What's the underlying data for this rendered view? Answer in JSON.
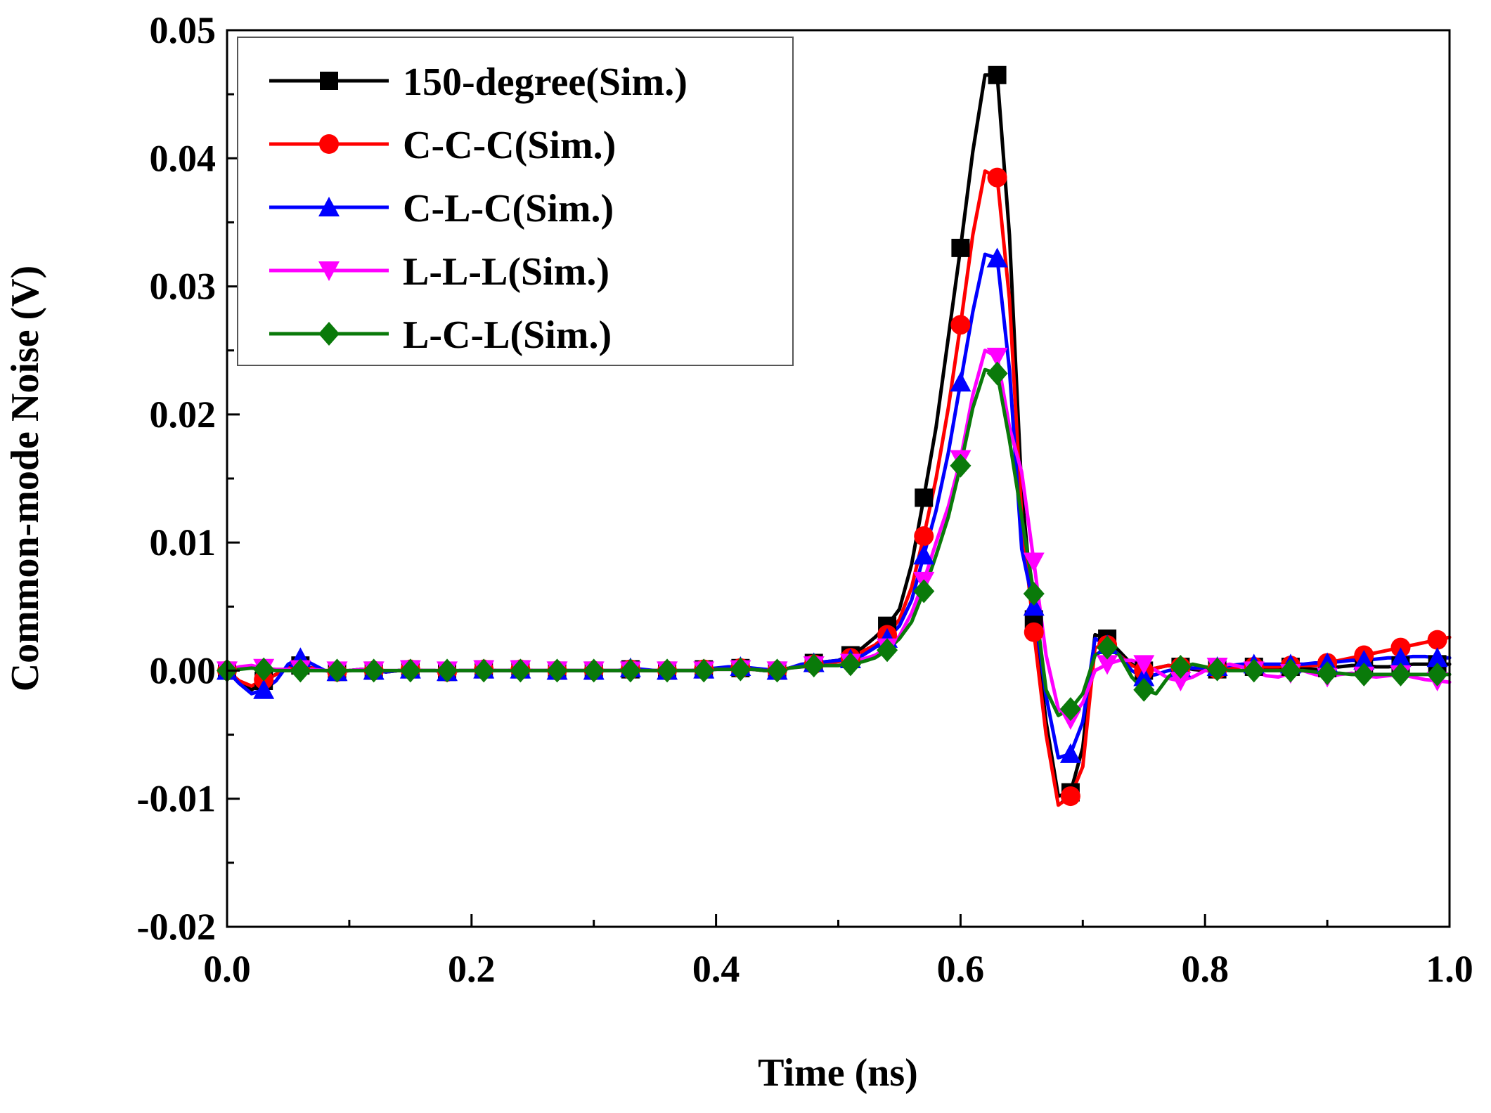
{
  "chart_data": {
    "type": "line",
    "title": "",
    "xlabel": "Time (ns)",
    "ylabel": "Common-mode Noise (V)",
    "xlim": [
      0.0,
      1.0
    ],
    "ylim": [
      -0.02,
      0.05
    ],
    "xticks": [
      0.0,
      0.2,
      0.4,
      0.6,
      0.8,
      1.0
    ],
    "xtick_labels": [
      "0.0",
      "0.2",
      "0.4",
      "0.6",
      "0.8",
      "1.0"
    ],
    "yticks": [
      -0.02,
      -0.01,
      0.0,
      0.01,
      0.02,
      0.03,
      0.04,
      0.05
    ],
    "ytick_labels": [
      "-0.02",
      "-0.01",
      "0.00",
      "0.01",
      "0.02",
      "0.03",
      "0.04",
      "0.05"
    ],
    "grid": false,
    "legend_position": "top-left",
    "x": [
      0.0,
      0.01,
      0.02,
      0.03,
      0.04,
      0.05,
      0.06,
      0.07,
      0.08,
      0.09,
      0.1,
      0.11,
      0.12,
      0.13,
      0.14,
      0.15,
      0.16,
      0.17,
      0.18,
      0.19,
      0.2,
      0.21,
      0.22,
      0.23,
      0.24,
      0.25,
      0.26,
      0.27,
      0.28,
      0.29,
      0.3,
      0.31,
      0.32,
      0.33,
      0.34,
      0.35,
      0.36,
      0.37,
      0.38,
      0.39,
      0.4,
      0.41,
      0.42,
      0.43,
      0.44,
      0.45,
      0.46,
      0.47,
      0.48,
      0.49,
      0.5,
      0.51,
      0.52,
      0.53,
      0.54,
      0.55,
      0.56,
      0.57,
      0.58,
      0.59,
      0.6,
      0.61,
      0.62,
      0.63,
      0.64,
      0.65,
      0.66,
      0.67,
      0.68,
      0.69,
      0.7,
      0.71,
      0.72,
      0.73,
      0.74,
      0.75,
      0.76,
      0.77,
      0.78,
      0.79,
      0.8,
      0.81,
      0.82,
      0.83,
      0.84,
      0.85,
      0.86,
      0.87,
      0.88,
      0.89,
      0.9,
      0.91,
      0.92,
      0.93,
      0.94,
      0.95,
      0.96,
      0.97,
      0.98,
      0.99,
      1.0
    ],
    "series": [
      {
        "name": "150-degree(Sim.)",
        "color": "#000000",
        "marker": "square",
        "marker_every": 3,
        "values": [
          0.0,
          -0.001,
          -0.0015,
          -0.0008,
          -0.0003,
          0.0003,
          0.0004,
          0.0002,
          0.0,
          -0.0001,
          0.0,
          0.0001,
          0.0,
          -0.0001,
          0.0,
          0.0001,
          0.0,
          0.0,
          -0.0001,
          0.0,
          0.0,
          0.0001,
          0.0,
          0.0,
          0.0001,
          0.0,
          0.0,
          0.0,
          0.0,
          0.0,
          0.0,
          0.0,
          0.0,
          0.0001,
          0.0,
          0.0,
          0.0,
          0.0,
          0.0,
          0.0001,
          0.0001,
          0.0002,
          0.0002,
          0.0001,
          0.0,
          0.0,
          0.0002,
          0.0004,
          0.0006,
          0.0007,
          0.0008,
          0.0012,
          0.0018,
          0.0026,
          0.0035,
          0.0048,
          0.0083,
          0.0135,
          0.019,
          0.026,
          0.033,
          0.0405,
          0.0465,
          0.0465,
          0.034,
          0.014,
          0.004,
          -0.004,
          -0.0098,
          -0.0095,
          -0.006,
          0.0028,
          0.0025,
          0.0015,
          0.0005,
          0.0,
          0.0002,
          0.0004,
          0.0003,
          0.0001,
          0.0,
          0.0001,
          0.0002,
          0.0004,
          0.0003,
          0.0002,
          0.0002,
          0.0003,
          0.0002,
          0.0001,
          0.0002,
          0.0003,
          0.0004,
          0.0004,
          0.0003,
          0.0003,
          0.0004,
          0.0005,
          0.0005,
          0.0005,
          0.0005
        ]
      },
      {
        "name": "C-C-C(Sim.)",
        "color": "#ff0000",
        "marker": "circle",
        "marker_every": 3,
        "values": [
          0.0,
          -0.0008,
          -0.0012,
          -0.0007,
          -0.0003,
          0.0002,
          0.0003,
          0.0002,
          0.0,
          -0.0001,
          0.0,
          0.0001,
          0.0,
          -0.0001,
          0.0,
          0.0001,
          0.0,
          0.0,
          -0.0001,
          0.0,
          0.0,
          0.0001,
          0.0,
          0.0,
          0.0001,
          0.0,
          0.0,
          0.0,
          0.0,
          0.0,
          0.0,
          0.0,
          0.0,
          0.0001,
          0.0,
          0.0,
          0.0,
          0.0,
          0.0,
          0.0001,
          0.0001,
          0.0002,
          0.0002,
          0.0001,
          0.0,
          0.0,
          0.0002,
          0.0004,
          0.0005,
          0.0006,
          0.0007,
          0.001,
          0.0015,
          0.002,
          0.0028,
          0.004,
          0.0065,
          0.0105,
          0.015,
          0.0205,
          0.027,
          0.034,
          0.039,
          0.0385,
          0.029,
          0.012,
          0.003,
          -0.005,
          -0.0105,
          -0.0098,
          -0.0075,
          0.0018,
          0.002,
          0.0012,
          0.0004,
          0.0,
          0.0002,
          0.0004,
          0.0003,
          0.0002,
          0.0001,
          0.0001,
          0.0002,
          0.0003,
          0.0003,
          0.0003,
          0.0003,
          0.0004,
          0.0004,
          0.0004,
          0.0006,
          0.0008,
          0.001,
          0.0012,
          0.0014,
          0.0016,
          0.0018,
          0.002,
          0.0022,
          0.0024,
          0.0026
        ]
      },
      {
        "name": "C-L-C(Sim.)",
        "color": "#0000ff",
        "marker": "triangle-up",
        "marker_every": 3,
        "values": [
          0.0,
          -0.001,
          -0.0018,
          -0.0015,
          -0.0008,
          0.0005,
          0.001,
          0.0005,
          0.0,
          -0.0001,
          0.0,
          0.0001,
          0.0,
          -0.0001,
          0.0,
          0.0001,
          0.0,
          0.0,
          -0.0001,
          0.0,
          0.0,
          0.0001,
          0.0,
          0.0,
          0.0001,
          0.0,
          0.0,
          0.0,
          0.0,
          0.0,
          0.0,
          0.0,
          0.0,
          0.0002,
          0.0001,
          0.0,
          0.0,
          0.0,
          0.0,
          0.0001,
          0.0002,
          0.0003,
          0.0003,
          0.0002,
          0.0001,
          0.0,
          0.0002,
          0.0005,
          0.0006,
          0.0007,
          0.0008,
          0.0009,
          0.0012,
          0.0018,
          0.0025,
          0.0035,
          0.0055,
          0.009,
          0.0125,
          0.017,
          0.0225,
          0.028,
          0.0325,
          0.0322,
          0.0235,
          0.0095,
          0.005,
          -0.002,
          -0.0068,
          -0.0065,
          -0.004,
          0.0025,
          0.002,
          0.0012,
          0.0,
          -0.0005,
          -0.0003,
          0.0,
          0.0002,
          0.0002,
          0.0002,
          0.0003,
          0.0004,
          0.0005,
          0.0005,
          0.0005,
          0.0005,
          0.0005,
          0.0005,
          0.0006,
          0.0006,
          0.0007,
          0.0008,
          0.0008,
          0.0009,
          0.001,
          0.001,
          0.0011,
          0.0011,
          0.001,
          0.001
        ]
      },
      {
        "name": "L-L-L(Sim.)",
        "color": "#ff00ff",
        "marker": "triangle-down",
        "marker_every": 3,
        "values": [
          0.0,
          0.0003,
          0.0004,
          0.0002,
          0.0001,
          0.0001,
          0.0001,
          0.0001,
          0.0,
          0.0,
          0.0,
          0.0001,
          0.0,
          0.0,
          0.0,
          0.0001,
          0.0,
          0.0,
          0.0,
          0.0,
          0.0,
          0.0001,
          0.0,
          0.0,
          0.0001,
          0.0,
          0.0,
          0.0,
          0.0,
          0.0,
          0.0,
          0.0,
          0.0,
          0.0,
          0.0,
          0.0,
          0.0,
          0.0,
          0.0,
          0.0,
          0.0001,
          0.0001,
          0.0001,
          0.0001,
          0.0,
          0.0,
          0.0002,
          0.0003,
          0.0004,
          0.0004,
          0.0004,
          0.0006,
          0.0009,
          0.0012,
          0.0018,
          0.0027,
          0.0045,
          0.007,
          0.01,
          0.0128,
          0.0165,
          0.0215,
          0.025,
          0.0245,
          0.019,
          0.0155,
          0.0085,
          0.0012,
          -0.003,
          -0.0038,
          -0.0025,
          0.0,
          0.0005,
          0.0008,
          0.0008,
          0.0005,
          0.0,
          -0.0006,
          -0.0008,
          -0.0005,
          0.0,
          0.0003,
          0.0005,
          0.0003,
          0.0,
          -0.0004,
          -0.0005,
          -0.0002,
          0.0,
          -0.0003,
          -0.0005,
          -0.0003,
          -0.0002,
          -0.0004,
          -0.0005,
          -0.0004,
          -0.0003,
          -0.0005,
          -0.0007,
          -0.0008,
          -0.0009
        ]
      },
      {
        "name": "L-C-L(Sim.)",
        "color": "#0a7a0a",
        "marker": "diamond",
        "marker_every": 3,
        "values": [
          0.0,
          0.0001,
          0.0002,
          0.0001,
          0.0,
          0.0,
          0.0,
          0.0,
          0.0,
          0.0,
          0.0,
          0.0,
          0.0,
          0.0,
          0.0,
          0.0,
          0.0,
          0.0,
          0.0,
          0.0,
          0.0,
          0.0,
          0.0,
          0.0,
          0.0,
          0.0,
          0.0,
          0.0,
          0.0,
          0.0,
          0.0,
          0.0,
          0.0,
          0.0,
          0.0,
          0.0,
          0.0,
          0.0,
          0.0,
          0.0,
          0.0001,
          0.0001,
          0.0001,
          0.0001,
          0.0,
          0.0,
          0.0002,
          0.0003,
          0.0004,
          0.0004,
          0.0004,
          0.0005,
          0.0007,
          0.001,
          0.0016,
          0.0025,
          0.0038,
          0.0062,
          0.009,
          0.012,
          0.016,
          0.0205,
          0.0235,
          0.0232,
          0.018,
          0.012,
          0.006,
          -0.0015,
          -0.0035,
          -0.003,
          -0.0018,
          0.0012,
          0.0018,
          0.0012,
          -0.0005,
          -0.0015,
          -0.0018,
          -0.0005,
          0.0003,
          0.0005,
          0.0003,
          0.0001,
          0.0,
          0.0,
          0.0,
          0.0,
          0.0,
          0.0,
          0.0,
          -0.0001,
          -0.0002,
          -0.0002,
          -0.0003,
          -0.0003,
          -0.0003,
          -0.0003,
          -0.0003,
          -0.0003,
          -0.0003,
          -0.0003,
          -0.0003
        ]
      }
    ]
  }
}
